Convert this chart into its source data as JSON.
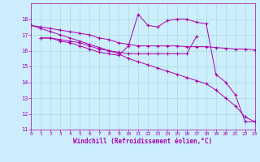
{
  "xlabel": "Windchill (Refroidissement éolien,°C)",
  "bg_color": "#cceeff",
  "grid_color": "#aaddcc",
  "line_color": "#aa00aa",
  "xlim": [
    0,
    23
  ],
  "ylim": [
    11,
    19
  ],
  "yticks": [
    11,
    12,
    13,
    14,
    15,
    16,
    17,
    18
  ],
  "xticks": [
    0,
    1,
    2,
    3,
    4,
    5,
    6,
    7,
    8,
    9,
    10,
    11,
    12,
    13,
    14,
    15,
    16,
    17,
    18,
    19,
    20,
    21,
    22,
    23
  ],
  "line1_x": [
    0,
    1,
    2,
    3,
    4,
    5,
    6,
    7,
    8,
    9,
    10,
    11,
    12,
    13,
    14,
    15,
    16,
    17,
    18,
    19,
    20,
    21,
    22,
    23
  ],
  "line1_y": [
    17.6,
    17.5,
    17.4,
    17.3,
    17.2,
    17.1,
    17.0,
    16.8,
    16.7,
    16.5,
    16.4,
    16.3,
    16.3,
    16.3,
    16.3,
    16.3,
    16.25,
    16.25,
    16.25,
    16.2,
    16.15,
    16.1,
    16.1,
    16.05
  ],
  "line2_x": [
    1,
    2,
    3,
    4,
    5,
    6,
    7,
    8,
    9,
    10,
    11,
    12,
    13,
    14,
    15,
    16,
    17
  ],
  "line2_y": [
    16.8,
    16.8,
    16.7,
    16.6,
    16.5,
    16.3,
    16.1,
    16.0,
    15.9,
    15.8,
    15.8,
    15.8,
    15.8,
    15.8,
    15.8,
    15.8,
    16.9
  ],
  "line3_x": [
    1,
    2,
    3,
    4,
    5,
    6,
    7,
    8,
    9,
    10,
    11,
    12,
    13,
    14,
    15,
    16,
    17,
    18,
    19,
    20,
    21,
    22,
    23
  ],
  "line3_y": [
    16.8,
    16.8,
    16.6,
    16.5,
    16.3,
    16.1,
    15.9,
    15.8,
    15.7,
    16.3,
    18.3,
    17.6,
    17.5,
    17.9,
    18.0,
    18.0,
    17.8,
    17.7,
    14.5,
    14.0,
    13.2,
    11.5,
    11.5
  ],
  "line4_x": [
    0,
    1,
    2,
    3,
    4,
    5,
    6,
    7,
    8,
    9,
    10,
    11,
    12,
    13,
    14,
    15,
    16,
    17,
    18,
    19,
    20,
    21,
    22,
    23
  ],
  "line4_y": [
    17.6,
    17.4,
    17.2,
    17.0,
    16.8,
    16.6,
    16.4,
    16.2,
    16.0,
    15.8,
    15.5,
    15.3,
    15.1,
    14.9,
    14.7,
    14.5,
    14.3,
    14.1,
    13.9,
    13.5,
    13.0,
    12.5,
    11.8,
    11.5
  ]
}
